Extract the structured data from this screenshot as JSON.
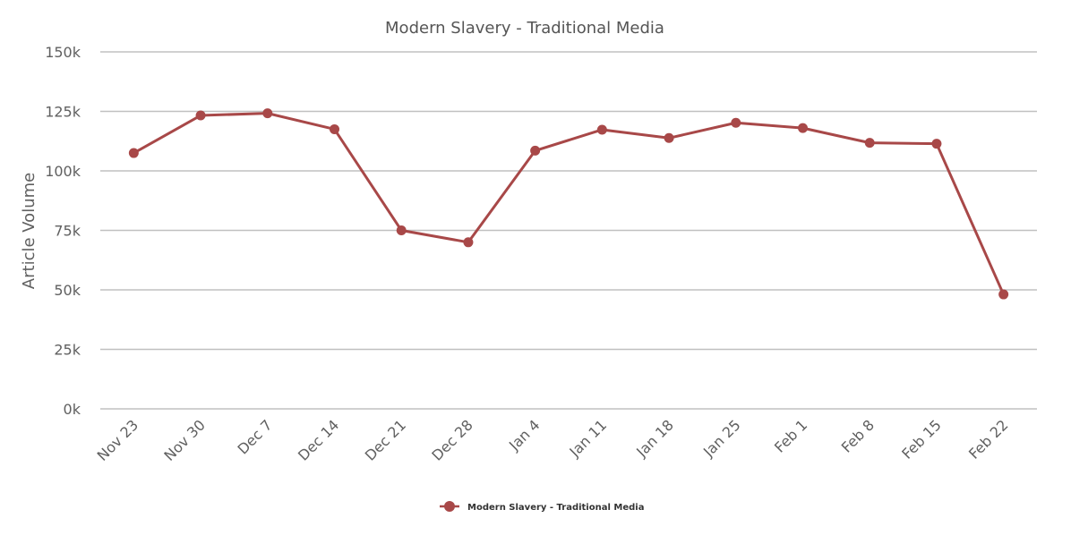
{
  "chart_data": {
    "type": "line",
    "title": "Modern Slavery - Traditional Media",
    "xlabel": "",
    "ylabel": "Article Volume",
    "categories": [
      "Nov 23",
      "Nov 30",
      "Dec 7",
      "Dec 14",
      "Dec 21",
      "Dec 28",
      "Jan 4",
      "Jan 11",
      "Jan 18",
      "Jan 25",
      "Feb 1",
      "Feb 8",
      "Feb 15",
      "Feb 22"
    ],
    "series": [
      {
        "name": "Modern Slavery - Traditional Media",
        "color": "#a84848",
        "values": [
          107500,
          123300,
          124200,
          117500,
          75000,
          70000,
          108500,
          117300,
          113800,
          120200,
          118000,
          111800,
          111400,
          48100
        ]
      }
    ],
    "ylim": [
      0,
      150000
    ],
    "yticks": [
      {
        "value": 0,
        "label": "0k"
      },
      {
        "value": 25000,
        "label": "25k"
      },
      {
        "value": 50000,
        "label": "50k"
      },
      {
        "value": 75000,
        "label": "75k"
      },
      {
        "value": 100000,
        "label": "100k"
      },
      {
        "value": 125000,
        "label": "125k"
      },
      {
        "value": 150000,
        "label": "150k"
      }
    ],
    "grid": true,
    "legend_position": "bottom-center"
  }
}
